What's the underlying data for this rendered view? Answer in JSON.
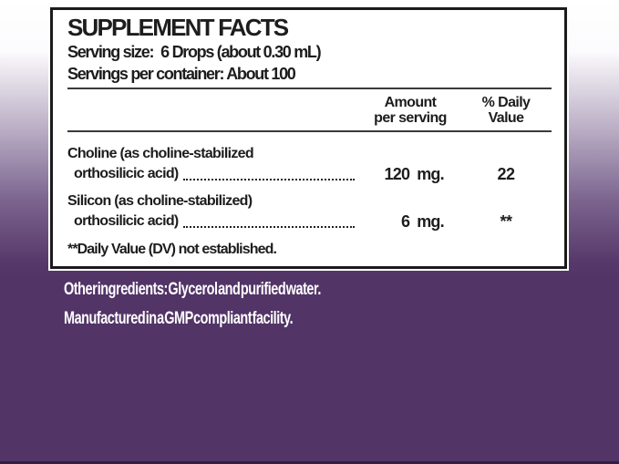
{
  "panel": {
    "title": "SUPPLEMENT FACTS",
    "serving_size_label": "Serving size:",
    "serving_size_value": "6 Drops (about 0.30 mL)",
    "servings_per_container": "Servings per container: About 100",
    "columns": {
      "amount_line1": "Amount",
      "amount_line2": "per serving",
      "dv_line1": "% Daily",
      "dv_line2": "Value"
    },
    "rows": [
      {
        "name_line1": "Choline (as choline-stabilized",
        "name_line2": "orthosilicic acid)",
        "amount": "120",
        "unit": "mg.",
        "daily_value": "22"
      },
      {
        "name_line1": "Silicon (as choline-stabilized)",
        "name_line2": "orthosilicic acid)",
        "amount": "6",
        "unit": "mg.",
        "daily_value": "**"
      }
    ],
    "footnote": "**Daily Value (DV) not established."
  },
  "below": {
    "other_ingredients": "Other ingredients: Glycerol and purified water.",
    "manufactured": "Manufactured in a GMP compliant facility."
  },
  "colors": {
    "background_purple": "#523467",
    "gradient_top": "#ffffff",
    "panel_background": "#ffffff",
    "panel_border": "#1b1b1b",
    "panel_text": "#1d1d1d",
    "below_text": "#ffffff"
  }
}
